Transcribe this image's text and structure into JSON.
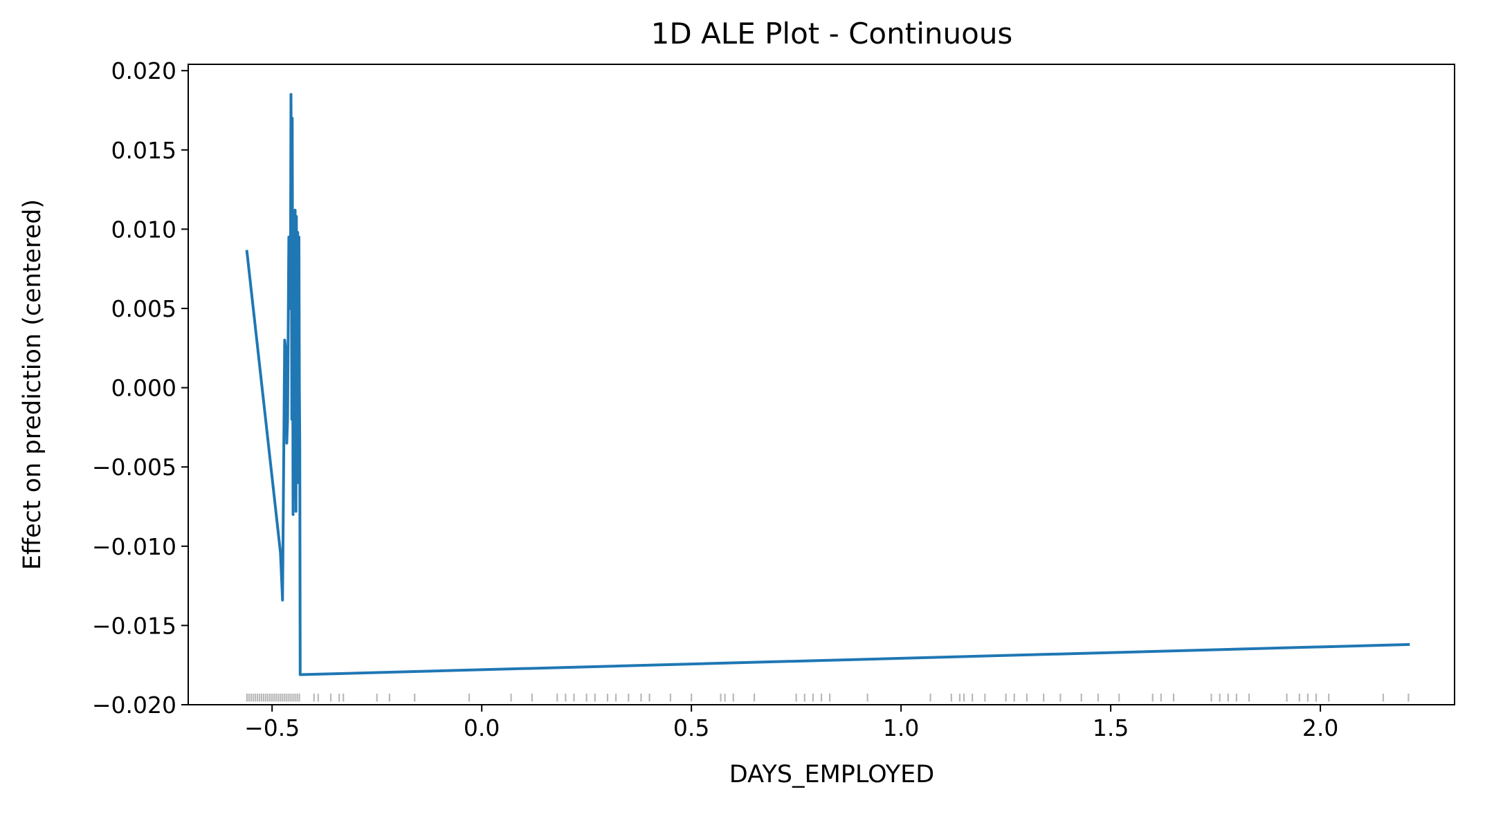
{
  "chart_data": {
    "type": "line",
    "title": "1D ALE Plot - Continuous",
    "xlabel": "DAYS_EMPLOYED",
    "ylabel": "Effect on prediction (centered)",
    "xlim": [
      -0.7,
      2.32
    ],
    "ylim": [
      -0.02,
      0.0204
    ],
    "xticks": [
      -0.5,
      0.0,
      0.5,
      1.0,
      1.5,
      2.0
    ],
    "xtick_labels": [
      "−0.5",
      "0.0",
      "0.5",
      "1.0",
      "1.5",
      "2.0"
    ],
    "yticks": [
      -0.02,
      -0.015,
      -0.01,
      -0.005,
      0.0,
      0.005,
      0.01,
      0.015,
      0.02
    ],
    "ytick_labels": [
      "−0.020",
      "−0.015",
      "−0.010",
      "−0.005",
      "0.000",
      "0.005",
      "0.010",
      "0.015",
      "0.020"
    ],
    "grid": false,
    "line_color": "#1f77b4",
    "rug_color": "#000000",
    "series": [
      {
        "x": [
          -0.56,
          -0.48,
          -0.475,
          -0.47,
          -0.468,
          -0.465,
          -0.463,
          -0.46,
          -0.458,
          -0.456,
          -0.455,
          -0.454,
          -0.453,
          -0.452,
          -0.451,
          -0.45,
          -0.449,
          -0.448,
          -0.447,
          -0.446,
          -0.445,
          -0.444,
          -0.443,
          -0.442,
          -0.441,
          -0.44,
          -0.439,
          -0.438,
          -0.437,
          -0.436,
          -0.435,
          -0.434,
          -0.433,
          2.21
        ],
        "y": [
          0.0086,
          -0.0104,
          -0.0134,
          0.003,
          0.0025,
          -0.0035,
          -0.002,
          0.0095,
          0.005,
          0.009,
          0.0185,
          0.012,
          -0.002,
          0.017,
          0.005,
          -0.008,
          0.011,
          0.004,
          0.0085,
          -0.007,
          0.0112,
          0.002,
          -0.0078,
          0.0108,
          0.003,
          -0.005,
          0.0098,
          0.001,
          -0.006,
          0.0095,
          0.0,
          -0.0035,
          -0.0181,
          -0.0162
        ]
      }
    ],
    "rug": {
      "x": [
        -0.56,
        -0.555,
        -0.55,
        -0.545,
        -0.54,
        -0.535,
        -0.53,
        -0.525,
        -0.52,
        -0.515,
        -0.51,
        -0.505,
        -0.5,
        -0.495,
        -0.49,
        -0.485,
        -0.48,
        -0.475,
        -0.47,
        -0.465,
        -0.46,
        -0.455,
        -0.45,
        -0.445,
        -0.44,
        -0.435,
        -0.4,
        -0.39,
        -0.36,
        -0.34,
        -0.33,
        -0.25,
        -0.22,
        -0.16,
        -0.03,
        0.07,
        0.12,
        0.18,
        0.2,
        0.22,
        0.25,
        0.27,
        0.3,
        0.32,
        0.35,
        0.38,
        0.4,
        0.45,
        0.5,
        0.57,
        0.58,
        0.6,
        0.65,
        0.75,
        0.77,
        0.79,
        0.81,
        0.83,
        0.92,
        1.07,
        1.12,
        1.14,
        1.15,
        1.17,
        1.2,
        1.25,
        1.27,
        1.3,
        1.34,
        1.38,
        1.43,
        1.47,
        1.52,
        1.6,
        1.62,
        1.65,
        1.74,
        1.76,
        1.78,
        1.8,
        1.83,
        1.92,
        1.95,
        1.97,
        1.99,
        2.02,
        2.15,
        2.21
      ]
    }
  }
}
